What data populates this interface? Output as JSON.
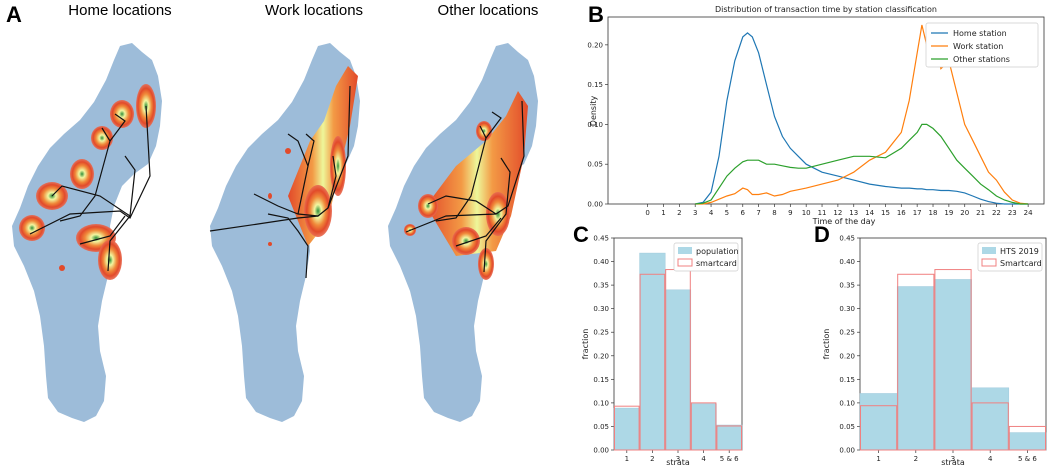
{
  "panel_labels": {
    "a": "A",
    "b": "B",
    "c": "C",
    "d": "D"
  },
  "maps": [
    {
      "title": "Home locations"
    },
    {
      "title": "Work locations"
    },
    {
      "title": "Other locations"
    }
  ],
  "colors": {
    "map_fill": "#9dbcd9",
    "home": "#1f77b4",
    "work": "#ff7f0e",
    "other": "#2ca02c",
    "bar_fill": "#add8e6",
    "bar_edge": "#f08080"
  },
  "chart_data": [
    {
      "type": "line",
      "title": "Distribution of transaction time by station classification",
      "xlabel": "Time of the day",
      "ylabel": "Density",
      "xlim": [
        -2.5,
        25
      ],
      "ylim": [
        0,
        0.235
      ],
      "xticks": [
        "0",
        "1",
        "2",
        "3",
        "4",
        "5",
        "6",
        "7",
        "8",
        "9",
        "10",
        "11",
        "12",
        "13",
        "14",
        "15",
        "16",
        "17",
        "18",
        "19",
        "20",
        "21",
        "22",
        "23",
        "24"
      ],
      "yticks": [
        "0.00",
        "0.05",
        "0.10",
        "0.15",
        "0.20"
      ],
      "x": [
        3,
        3.5,
        4,
        4.5,
        5,
        5.5,
        6,
        6.3,
        6.6,
        7,
        7.5,
        8,
        8.5,
        9,
        9.5,
        10,
        11,
        12,
        13,
        14,
        15,
        16,
        16.5,
        17,
        17.3,
        17.6,
        18,
        18.5,
        19,
        19.5,
        20,
        20.5,
        21,
        21.5,
        22,
        22.5,
        23,
        23.5,
        24
      ],
      "series": [
        {
          "name": "Home station",
          "values": [
            0.0,
            0.002,
            0.015,
            0.06,
            0.13,
            0.18,
            0.21,
            0.215,
            0.21,
            0.19,
            0.15,
            0.11,
            0.085,
            0.07,
            0.06,
            0.05,
            0.04,
            0.035,
            0.03,
            0.025,
            0.022,
            0.02,
            0.02,
            0.019,
            0.019,
            0.018,
            0.018,
            0.017,
            0.017,
            0.016,
            0.014,
            0.01,
            0.006,
            0.003,
            0.001,
            0.0,
            0.0,
            0.0,
            0.0
          ]
        },
        {
          "name": "Work station",
          "values": [
            0.0,
            0.0,
            0.002,
            0.006,
            0.01,
            0.013,
            0.02,
            0.018,
            0.012,
            0.012,
            0.014,
            0.01,
            0.012,
            0.016,
            0.018,
            0.02,
            0.025,
            0.03,
            0.04,
            0.055,
            0.065,
            0.09,
            0.13,
            0.19,
            0.225,
            0.2,
            0.215,
            0.17,
            0.18,
            0.14,
            0.1,
            0.08,
            0.06,
            0.04,
            0.03,
            0.015,
            0.005,
            0.001,
            0.0
          ]
        },
        {
          "name": "Other stations",
          "values": [
            0.0,
            0.001,
            0.005,
            0.02,
            0.035,
            0.045,
            0.053,
            0.055,
            0.055,
            0.055,
            0.05,
            0.05,
            0.048,
            0.046,
            0.045,
            0.045,
            0.05,
            0.055,
            0.06,
            0.06,
            0.058,
            0.07,
            0.08,
            0.09,
            0.1,
            0.1,
            0.095,
            0.085,
            0.07,
            0.055,
            0.045,
            0.035,
            0.025,
            0.018,
            0.01,
            0.005,
            0.002,
            0.0,
            0.0
          ]
        }
      ],
      "legend": "top-right"
    },
    {
      "type": "bar",
      "xlabel": "strata",
      "ylabel": "fraction",
      "categories": [
        "1",
        "2",
        "3",
        "4",
        "5 & 6"
      ],
      "ylim": [
        0,
        0.45
      ],
      "yticks": [
        "0.00",
        "0.05",
        "0.10",
        "0.15",
        "0.20",
        "0.25",
        "0.30",
        "0.35",
        "0.40",
        "0.45"
      ],
      "series": [
        {
          "name": "population",
          "style": "filled",
          "values": [
            0.089,
            0.418,
            0.34,
            0.098,
            0.053
          ]
        },
        {
          "name": "smartcard",
          "style": "outline",
          "values": [
            0.093,
            0.373,
            0.383,
            0.1,
            0.051
          ]
        }
      ],
      "legend": "top-right"
    },
    {
      "type": "bar",
      "xlabel": "strata",
      "ylabel": "fraction",
      "categories": [
        "1",
        "2",
        "3",
        "4",
        "5 & 6"
      ],
      "ylim": [
        0,
        0.45
      ],
      "yticks": [
        "0.00",
        "0.05",
        "0.10",
        "0.15",
        "0.20",
        "0.25",
        "0.30",
        "0.35",
        "0.40",
        "0.45"
      ],
      "series": [
        {
          "name": "HTS 2019",
          "style": "filled",
          "values": [
            0.12,
            0.347,
            0.362,
            0.132,
            0.037
          ]
        },
        {
          "name": "Smartcard",
          "style": "outline",
          "values": [
            0.094,
            0.373,
            0.383,
            0.1,
            0.05
          ]
        }
      ],
      "legend": "top-right"
    }
  ]
}
